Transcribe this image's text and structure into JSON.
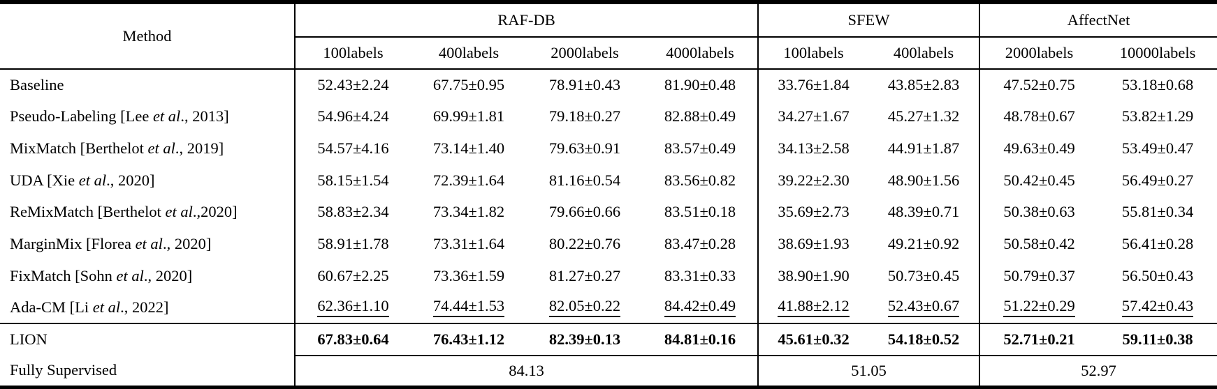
{
  "page": {
    "background_color": "#ffffff",
    "text_color": "#000000",
    "rule_color": "#000000"
  },
  "table": {
    "corner_header": "Method",
    "groups": [
      {
        "label": "RAF-DB",
        "columns": [
          "100labels",
          "400labels",
          "2000labels",
          "4000labels"
        ]
      },
      {
        "label": "SFEW",
        "columns": [
          "100labels",
          "400labels"
        ]
      },
      {
        "label": "AffectNet",
        "columns": [
          "2000labels",
          "10000labels"
        ]
      }
    ],
    "rows": [
      {
        "method": {
          "pre": "Baseline",
          "italic": "",
          "post": ""
        },
        "style": "normal",
        "values": [
          "52.43±2.24",
          "67.75±0.95",
          "78.91±0.43",
          "81.90±0.48",
          "33.76±1.84",
          "43.85±2.83",
          "47.52±0.75",
          "53.18±0.68"
        ]
      },
      {
        "method": {
          "pre": "Pseudo-Labeling [Lee ",
          "italic": "et al",
          "post": "., 2013]"
        },
        "style": "normal",
        "values": [
          "54.96±4.24",
          "69.99±1.81",
          "79.18±0.27",
          "82.88±0.49",
          "34.27±1.67",
          "45.27±1.32",
          "48.78±0.67",
          "53.82±1.29"
        ]
      },
      {
        "method": {
          "pre": "MixMatch [Berthelot ",
          "italic": "et al",
          "post": "., 2019]"
        },
        "style": "normal",
        "values": [
          "54.57±4.16",
          "73.14±1.40",
          "79.63±0.91",
          "83.57±0.49",
          "34.13±2.58",
          "44.91±1.87",
          "49.63±0.49",
          "53.49±0.47"
        ]
      },
      {
        "method": {
          "pre": "UDA [Xie ",
          "italic": "et al",
          "post": "., 2020]"
        },
        "style": "normal",
        "values": [
          "58.15±1.54",
          "72.39±1.64",
          "81.16±0.54",
          "83.56±0.82",
          "39.22±2.30",
          "48.90±1.56",
          "50.42±0.45",
          "56.49±0.27"
        ]
      },
      {
        "method": {
          "pre": "ReMixMatch [Berthelot ",
          "italic": "et al",
          "post": ".,2020]"
        },
        "style": "normal",
        "values": [
          "58.83±2.34",
          "73.34±1.82",
          "79.66±0.66",
          "83.51±0.18",
          "35.69±2.73",
          "48.39±0.71",
          "50.38±0.63",
          "55.81±0.34"
        ]
      },
      {
        "method": {
          "pre": "MarginMix [Florea ",
          "italic": "et al",
          "post": "., 2020]"
        },
        "style": "normal",
        "values": [
          "58.91±1.78",
          "73.31±1.64",
          "80.22±0.76",
          "83.47±0.28",
          "38.69±1.93",
          "49.21±0.92",
          "50.58±0.42",
          "56.41±0.28"
        ]
      },
      {
        "method": {
          "pre": "FixMatch [Sohn ",
          "italic": "et al",
          "post": "., 2020]"
        },
        "style": "normal",
        "values": [
          "60.67±2.25",
          "73.36±1.59",
          "81.27±0.27",
          "83.31±0.33",
          "38.90±1.90",
          "50.73±0.45",
          "50.79±0.37",
          "56.50±0.43"
        ]
      },
      {
        "method": {
          "pre": "Ada-CM [Li ",
          "italic": "et al",
          "post": "., 2022]"
        },
        "style": "underline",
        "values": [
          "62.36±1.10",
          "74.44±1.53",
          "82.05±0.22",
          "84.42±0.49",
          "41.88±2.12",
          "52.43±0.67",
          "51.22±0.29",
          "57.42±0.43"
        ]
      },
      {
        "method": {
          "pre": "LION",
          "italic": "",
          "post": ""
        },
        "style": "bold",
        "values": [
          "67.83±0.64",
          "76.43±1.12",
          "82.39±0.13",
          "84.81±0.16",
          "45.61±0.32",
          "54.18±0.52",
          "52.71±0.21",
          "59.11±0.38"
        ]
      }
    ],
    "supervised_row": {
      "label": "Fully Supervised",
      "values": [
        "84.13",
        "51.05",
        "52.97"
      ]
    }
  }
}
